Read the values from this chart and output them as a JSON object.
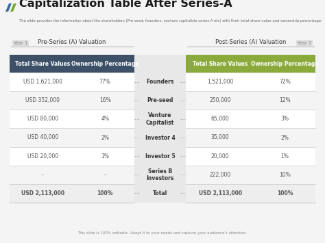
{
  "title": "Capitalization Table After Series-A",
  "subtitle": "The slide provides the information about the shareholders (Pre-seed, founders, venture capitalists series-A etc) with their total share value and ownership percentage.",
  "footer": "This slide is 100% editable. Adapt it to your needs and capture your audience's attention.",
  "pre_series_label": "Pre-Series (A) Valuation",
  "post_series_label": "Post-Series (A) Valuation",
  "year1_label": "Year 1",
  "year2_label": "Year 2",
  "header_bg_left": "#3d5068",
  "header_bg_right": "#8aab3c",
  "header_text_color": "#ffffff",
  "col_header_left": [
    "Total Share Values",
    "Ownership Percentage"
  ],
  "col_header_right": [
    "Total Share Values",
    "Ownership Percentage"
  ],
  "rows": [
    {
      "label": "Founders",
      "pre_val": "USD 1,621,000",
      "pre_pct": "77%",
      "post_val": "1,521,000",
      "post_pct": "72%"
    },
    {
      "label": "Pre-seed",
      "pre_val": "USD 352,000",
      "pre_pct": "16%",
      "post_val": "250,000",
      "post_pct": "12%"
    },
    {
      "label": "Venture\nCapitalist",
      "pre_val": "USD 80,000",
      "pre_pct": "4%",
      "post_val": "65,000",
      "post_pct": "3%"
    },
    {
      "label": "Investor 4",
      "pre_val": "USD 40,000",
      "pre_pct": "2%",
      "post_val": "35,000",
      "post_pct": "2%"
    },
    {
      "label": "Investor 5",
      "pre_val": "USD 20,000",
      "pre_pct": "1%",
      "post_val": "20,000",
      "post_pct": "1%"
    },
    {
      "label": "Series B\nInvestors",
      "pre_val": "-",
      "pre_pct": "-",
      "post_val": "222,000",
      "post_pct": "10%"
    },
    {
      "label": "Total",
      "pre_val": "USD 2,113,000",
      "pre_pct": "100%",
      "post_val": "USD 2,113,000",
      "post_pct": "100%"
    }
  ],
  "bg_color": "#f4f4f4",
  "row_bg_odd": "#ffffff",
  "row_bg_even": "#f4f4f4",
  "total_bg": "#eeeeee",
  "middle_bg": "#e8e8e8",
  "divider_color": "#cccccc",
  "text_color": "#555555",
  "title_color": "#1a1a1a",
  "label_color": "#333333",
  "icon_color1": "#3a6b9a",
  "icon_color2": "#7aaa2e"
}
